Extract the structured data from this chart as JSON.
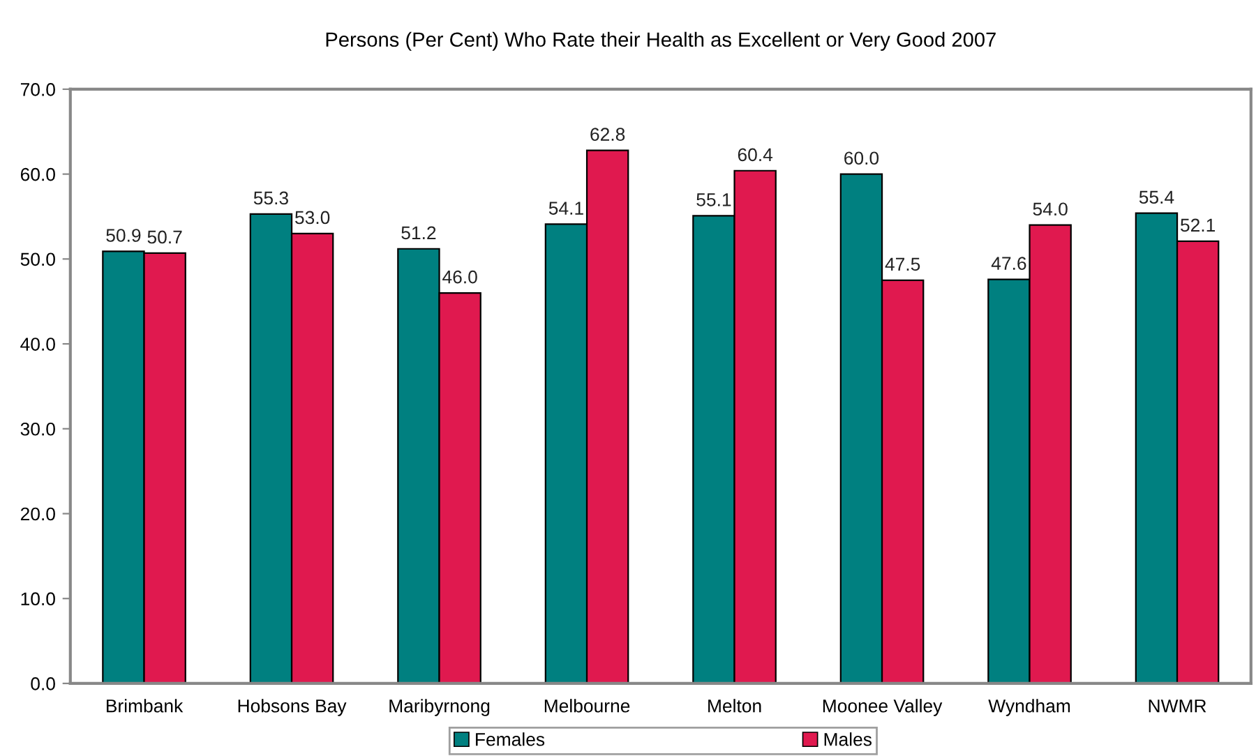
{
  "chart_data": {
    "type": "bar",
    "title": "Persons (Per Cent) Who Rate their Health as Excellent or Very Good 2007",
    "categories": [
      "Brimbank",
      "Hobsons Bay",
      "Maribyrnong",
      "Melbourne",
      "Melton",
      "Moonee Valley",
      "Wyndham",
      "NWMR"
    ],
    "series": [
      {
        "name": "Females",
        "color": "#008080",
        "values": [
          50.9,
          55.3,
          51.2,
          54.1,
          55.1,
          60.0,
          47.6,
          55.4
        ],
        "value_labels": [
          "50.9",
          "55.3",
          "51.2",
          "54.1",
          "55.1",
          "60.0",
          "47.6",
          "55.4"
        ]
      },
      {
        "name": "Males",
        "color": "#e0194f",
        "values": [
          50.7,
          53.0,
          46.0,
          62.8,
          60.4,
          47.5,
          54.0,
          52.1
        ],
        "value_labels": [
          "50.7",
          "53.0",
          "46.0",
          "62.8",
          "60.4",
          "47.5",
          "54.0",
          "52.1"
        ]
      }
    ],
    "ylim": [
      0,
      70
    ],
    "yticks": [
      {
        "value": 0,
        "label": "0.0"
      },
      {
        "value": 10,
        "label": "10.0"
      },
      {
        "value": 20,
        "label": "20.0"
      },
      {
        "value": 30,
        "label": "30.0"
      },
      {
        "value": 40,
        "label": "40.0"
      },
      {
        "value": 50,
        "label": "50.0"
      },
      {
        "value": 60,
        "label": "60.0"
      },
      {
        "value": 70,
        "label": "70.0"
      }
    ],
    "grid": false,
    "legend": "bottom"
  }
}
